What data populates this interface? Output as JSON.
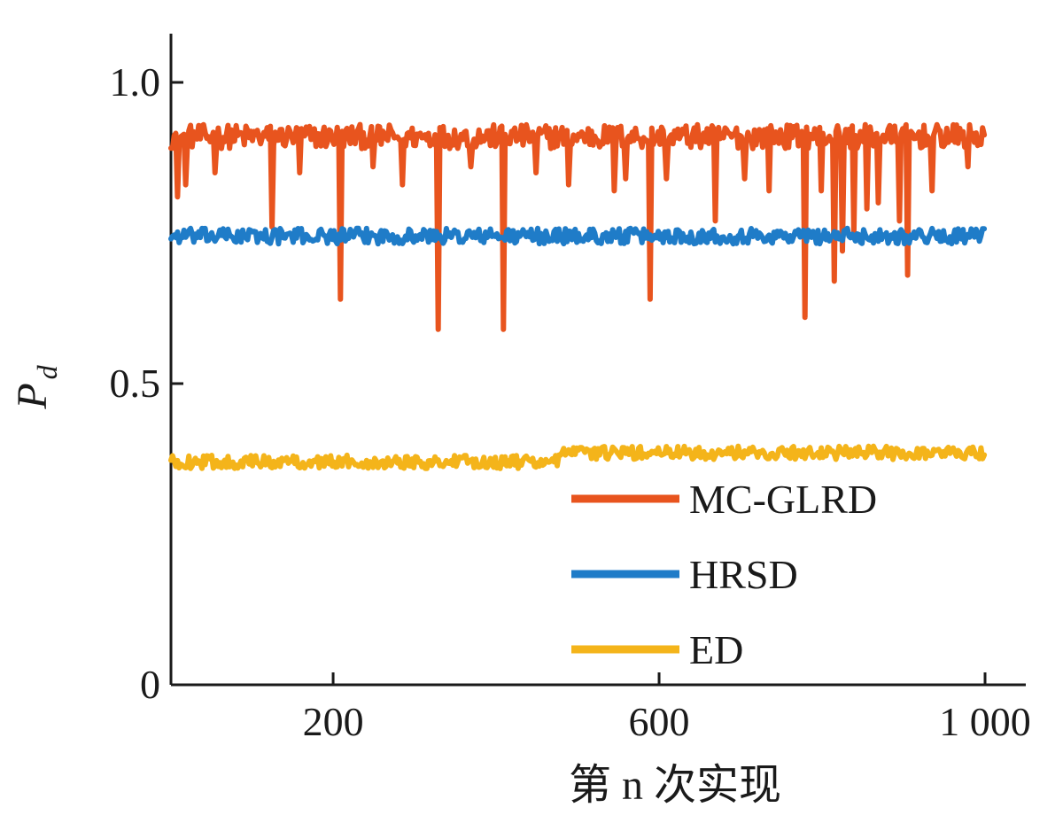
{
  "chart_data": {
    "type": "line",
    "title": "",
    "xlabel": "第 n 次实现",
    "ylabel": "P_d",
    "ylabel_main": "P",
    "ylabel_sub": "d",
    "xlim": [
      1,
      1000
    ],
    "ylim": [
      0,
      1.0
    ],
    "x_ticks": [
      200,
      600,
      1000
    ],
    "x_tick_labels": [
      "200",
      "600",
      "1 000"
    ],
    "y_ticks": [
      0,
      0.5,
      1.0
    ],
    "y_tick_labels": [
      "0",
      "0.5",
      "1.0"
    ],
    "grid": false,
    "legend_position": "lower-right",
    "series": [
      {
        "name": "MC-GLRD",
        "color": "#e8541e",
        "baseline": 0.91,
        "noise": 0.02,
        "dips": [
          {
            "x": 10,
            "y": 0.81
          },
          {
            "x": 20,
            "y": 0.83
          },
          {
            "x": 55,
            "y": 0.85
          },
          {
            "x": 125,
            "y": 0.76
          },
          {
            "x": 160,
            "y": 0.85
          },
          {
            "x": 210,
            "y": 0.64
          },
          {
            "x": 250,
            "y": 0.86
          },
          {
            "x": 285,
            "y": 0.83
          },
          {
            "x": 330,
            "y": 0.59
          },
          {
            "x": 370,
            "y": 0.86
          },
          {
            "x": 410,
            "y": 0.59
          },
          {
            "x": 450,
            "y": 0.85
          },
          {
            "x": 490,
            "y": 0.83
          },
          {
            "x": 545,
            "y": 0.82
          },
          {
            "x": 560,
            "y": 0.84
          },
          {
            "x": 590,
            "y": 0.64
          },
          {
            "x": 610,
            "y": 0.84
          },
          {
            "x": 670,
            "y": 0.77
          },
          {
            "x": 705,
            "y": 0.84
          },
          {
            "x": 735,
            "y": 0.82
          },
          {
            "x": 780,
            "y": 0.61
          },
          {
            "x": 800,
            "y": 0.82
          },
          {
            "x": 815,
            "y": 0.67
          },
          {
            "x": 825,
            "y": 0.72
          },
          {
            "x": 840,
            "y": 0.75
          },
          {
            "x": 855,
            "y": 0.79
          },
          {
            "x": 870,
            "y": 0.8
          },
          {
            "x": 895,
            "y": 0.77
          },
          {
            "x": 905,
            "y": 0.68
          },
          {
            "x": 935,
            "y": 0.82
          },
          {
            "x": 980,
            "y": 0.86
          }
        ]
      },
      {
        "name": "HRSD",
        "color": "#1f7cc8",
        "baseline": 0.745,
        "noise": 0.013,
        "dips": []
      },
      {
        "name": "ED",
        "color": "#f4b41a",
        "segments": [
          {
            "x_start": 1,
            "x_end": 475,
            "value": 0.37
          },
          {
            "x_start": 475,
            "x_end": 1000,
            "value": 0.385
          }
        ],
        "noise": 0.011,
        "dips": []
      }
    ]
  }
}
